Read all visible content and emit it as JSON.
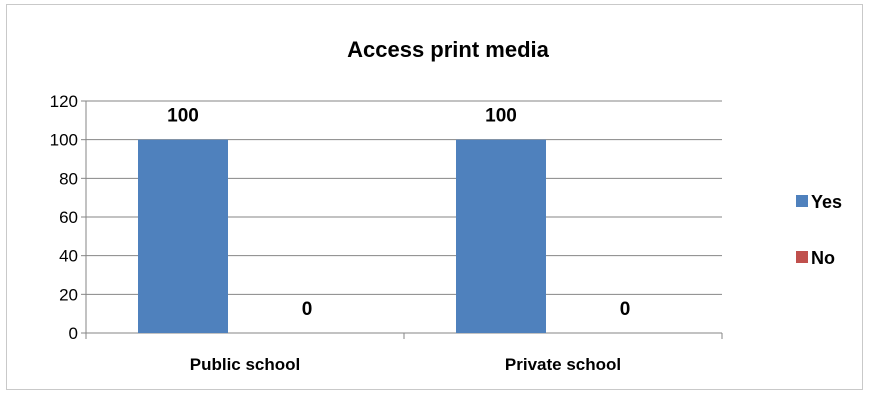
{
  "chart_data": {
    "type": "bar",
    "title": "Access print media",
    "categories": [
      "Public school",
      "Private school"
    ],
    "series": [
      {
        "name": "Yes",
        "values": [
          100,
          100
        ],
        "color": "#4f81bd"
      },
      {
        "name": "No",
        "values": [
          0,
          0
        ],
        "color": "#c0504d"
      }
    ],
    "xlabel": "",
    "ylabel": "",
    "ylim": [
      0,
      120
    ],
    "yticks": [
      0,
      20,
      40,
      60,
      80,
      100,
      120
    ],
    "grid": true,
    "legend_position": "right",
    "data_labels": true
  }
}
